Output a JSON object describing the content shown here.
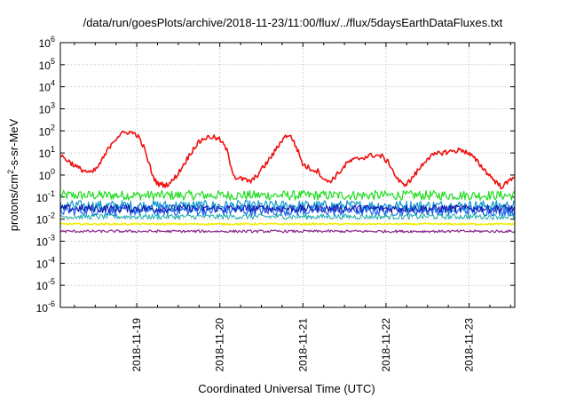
{
  "chart_data": {
    "type": "line",
    "title": "/data/run/goesPlots/archive/2018-11-23/11:00/flux/../flux/5daysEarthDataFluxes.txt",
    "xlabel": "Coordinated Universal Time (UTC)",
    "ylabel": {
      "base": "protons/cm",
      "sup": "2",
      "rest": "-s-sr-MeV"
    },
    "yscale": "log",
    "ylim_exp": [
      -6,
      6
    ],
    "y_tick_exponents": [
      -6,
      -5,
      -4,
      -3,
      -2,
      -1,
      0,
      1,
      2,
      3,
      4,
      5,
      6
    ],
    "x_ticks": [
      "2018-11-19",
      "2018-11-20",
      "2018-11-21",
      "2018-11-22",
      "2018-11-23"
    ],
    "xlim_days": [
      18.08,
      23.55
    ],
    "grid": true,
    "series": [
      {
        "color": "#ee1111",
        "width": 1.6,
        "noise": 0.12,
        "points": [
          [
            18.08,
            8
          ],
          [
            18.3,
            2
          ],
          [
            18.45,
            1.2
          ],
          [
            18.52,
            2
          ],
          [
            18.6,
            6
          ],
          [
            18.7,
            30
          ],
          [
            18.8,
            70
          ],
          [
            18.9,
            90
          ],
          [
            19.0,
            70
          ],
          [
            19.08,
            20
          ],
          [
            19.15,
            3
          ],
          [
            19.2,
            0.8
          ],
          [
            19.25,
            0.4
          ],
          [
            19.35,
            0.35
          ],
          [
            19.42,
            0.5
          ],
          [
            19.5,
            1.2
          ],
          [
            19.6,
            5
          ],
          [
            19.7,
            20
          ],
          [
            19.8,
            45
          ],
          [
            19.9,
            55
          ],
          [
            20.0,
            40
          ],
          [
            20.08,
            15
          ],
          [
            20.13,
            3
          ],
          [
            20.18,
            0.8
          ],
          [
            20.3,
            0.6
          ],
          [
            20.38,
            0.5
          ],
          [
            20.45,
            1
          ],
          [
            20.55,
            3
          ],
          [
            20.65,
            10
          ],
          [
            20.75,
            40
          ],
          [
            20.82,
            70
          ],
          [
            20.88,
            40
          ],
          [
            20.95,
            10
          ],
          [
            21.0,
            3
          ],
          [
            21.08,
            2
          ],
          [
            21.18,
            1.5
          ],
          [
            21.28,
            0.5
          ],
          [
            21.35,
            0.6
          ],
          [
            21.45,
            1.5
          ],
          [
            21.55,
            4
          ],
          [
            21.7,
            6
          ],
          [
            21.85,
            8
          ],
          [
            21.95,
            7
          ],
          [
            22.05,
            3
          ],
          [
            22.12,
            0.8
          ],
          [
            22.2,
            0.35
          ],
          [
            22.28,
            0.5
          ],
          [
            22.38,
            1.5
          ],
          [
            22.5,
            6
          ],
          [
            22.65,
            10
          ],
          [
            22.8,
            12
          ],
          [
            22.92,
            14
          ],
          [
            23.02,
            8
          ],
          [
            23.1,
            4
          ],
          [
            23.2,
            1.5
          ],
          [
            23.3,
            0.6
          ],
          [
            23.38,
            0.3
          ],
          [
            23.45,
            0.4
          ],
          [
            23.55,
            1
          ]
        ]
      },
      {
        "color": "#22dd22",
        "width": 1.2,
        "noise": 0.22,
        "points": [
          [
            18.08,
            0.12
          ],
          [
            23.55,
            0.12
          ]
        ]
      },
      {
        "color": "#1199cc",
        "width": 1.2,
        "noise": 0.25,
        "points": [
          [
            18.08,
            0.04
          ],
          [
            23.55,
            0.04
          ]
        ]
      },
      {
        "color": "#2266ee",
        "width": 1.2,
        "noise": 0.25,
        "points": [
          [
            18.08,
            0.025
          ],
          [
            23.55,
            0.025
          ]
        ]
      },
      {
        "color": "#1111aa",
        "width": 1.0,
        "noise": 0.18,
        "points": [
          [
            18.08,
            0.03
          ],
          [
            23.55,
            0.03
          ]
        ]
      },
      {
        "color": "#11aaaa",
        "width": 1.0,
        "noise": 0.12,
        "points": [
          [
            18.08,
            0.013
          ],
          [
            23.55,
            0.013
          ]
        ]
      },
      {
        "color": "#eeee00",
        "width": 1.6,
        "noise": 0.04,
        "points": [
          [
            18.08,
            0.006
          ],
          [
            23.55,
            0.006
          ]
        ]
      },
      {
        "color": "#882288",
        "width": 1.2,
        "noise": 0.06,
        "points": [
          [
            18.08,
            0.0028
          ],
          [
            23.55,
            0.0028
          ]
        ]
      }
    ]
  }
}
